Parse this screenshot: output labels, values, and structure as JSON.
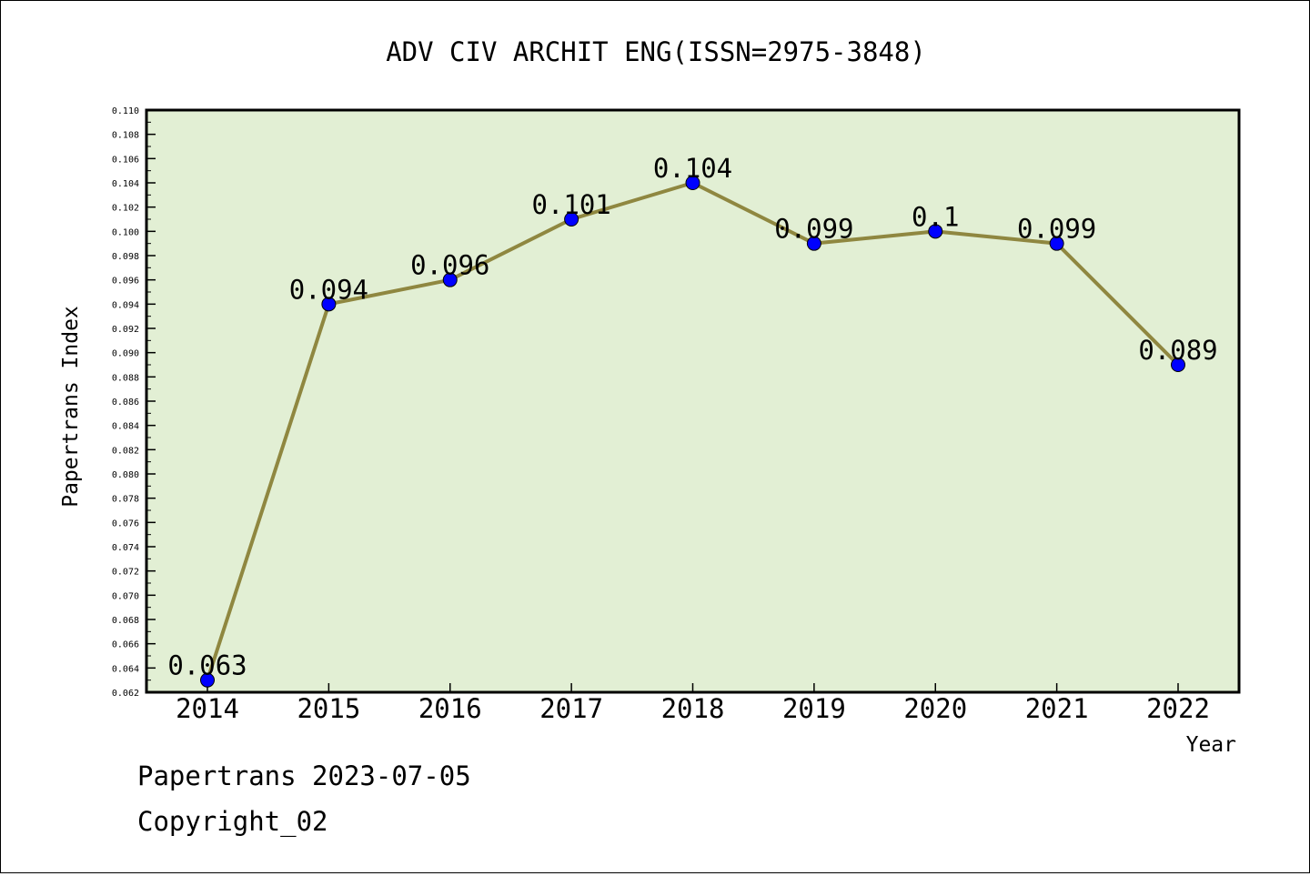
{
  "chart_data": {
    "type": "line",
    "title": "ADV CIV ARCHIT ENG(ISSN=2975-3848)",
    "xlabel": "Year",
    "ylabel": "Papertrans Index",
    "categories": [
      "2014",
      "2015",
      "2016",
      "2017",
      "2018",
      "2019",
      "2020",
      "2021",
      "2022"
    ],
    "series": [
      {
        "values": [
          0.063,
          0.094,
          0.096,
          0.101,
          0.104,
          0.099,
          0.1,
          0.099,
          0.089
        ],
        "labels": [
          "0.063",
          "0.094",
          "0.096",
          "0.101",
          "0.104",
          "0.099",
          "0.1",
          "0.099",
          "0.089"
        ]
      }
    ],
    "ylim": [
      0.062,
      0.11
    ],
    "yticks": [
      "0.062",
      "0.064",
      "0.066",
      "0.068",
      "0.070",
      "0.072",
      "0.074",
      "0.076",
      "0.078",
      "0.080",
      "0.082",
      "0.084",
      "0.086",
      "0.088",
      "0.090",
      "0.092",
      "0.094",
      "0.096",
      "0.098",
      "0.100",
      "0.102",
      "0.104",
      "0.106",
      "0.108",
      "0.110"
    ],
    "grid": false,
    "colors": {
      "plot_background": "#e2efd4",
      "line": "#8f8740",
      "marker": "#0000ff"
    }
  },
  "footer": {
    "line1": "Papertrans 2023-07-05",
    "line2": "Copyright_02"
  }
}
